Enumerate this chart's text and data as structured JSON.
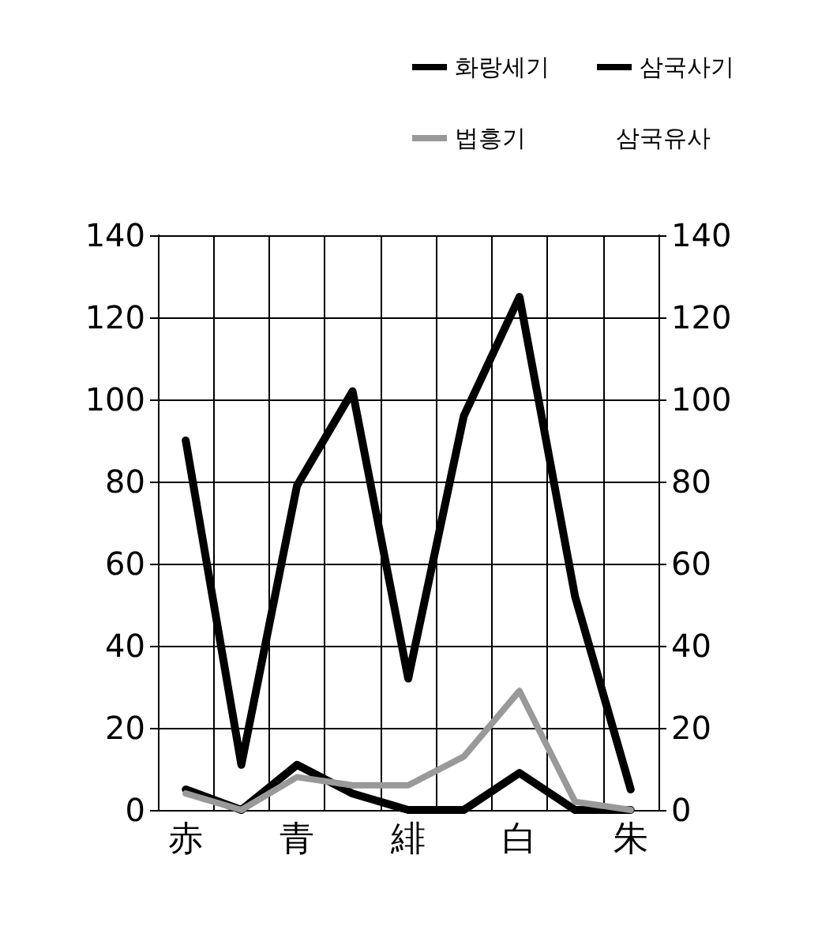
{
  "chart_data": {
    "type": "line",
    "categories": [
      "赤",
      null,
      "青",
      null,
      "緋",
      null,
      "白",
      null,
      "朱"
    ],
    "series": [
      {
        "name": "화랑세기",
        "color": "#000000",
        "values": [
          90,
          11,
          79,
          102,
          32,
          96,
          125,
          52,
          5
        ]
      },
      {
        "name": "삼국사기",
        "color": "#000000",
        "values": [
          5,
          0,
          11,
          4,
          0,
          0,
          9,
          0,
          0
        ]
      },
      {
        "name": "법흥기",
        "color": "#999999",
        "values": [
          4,
          0,
          8,
          6,
          6,
          13,
          29,
          2,
          0
        ]
      },
      {
        "name": "삼국유사",
        "values": [
          null,
          null,
          null,
          null,
          null,
          null,
          null,
          null,
          null
        ]
      }
    ],
    "ylim": [
      0,
      140
    ],
    "yticks": [
      0,
      20,
      40,
      60,
      80,
      100,
      120,
      140
    ],
    "y2lim": [
      0,
      140
    ],
    "y2ticks": [
      0,
      20,
      40,
      60,
      80,
      100,
      120,
      140
    ],
    "grid": true,
    "legend": "top right",
    "marker": "none",
    "line_style": "solid"
  }
}
